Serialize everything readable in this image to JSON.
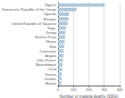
{
  "chart_data": {
    "type": "bar",
    "orientation": "horizontal",
    "xlabel": "Number of malaria deaths (000s)",
    "categories": [
      "Nigeria",
      "Democratic Republic of the Congo",
      "Uganda",
      "Ethiopia",
      "United Republic of Tanzania",
      "Niger",
      "Kenya",
      "Burkina Faso",
      "Ghana",
      "Mali",
      "Cameroon",
      "Angola",
      "Côte d'Ivoire",
      "Mozambique",
      "Chad",
      "Guinea",
      "Zambia",
      "Malawi"
    ],
    "values": [
      303,
      120,
      72,
      68,
      63,
      52,
      48,
      46,
      43,
      40,
      38,
      36,
      32,
      30,
      27,
      26,
      24,
      22
    ],
    "color": "#aec6d8",
    "xlim": [
      0,
      400
    ],
    "xticks": [
      0,
      100,
      200,
      300,
      400
    ],
    "grid": true
  }
}
